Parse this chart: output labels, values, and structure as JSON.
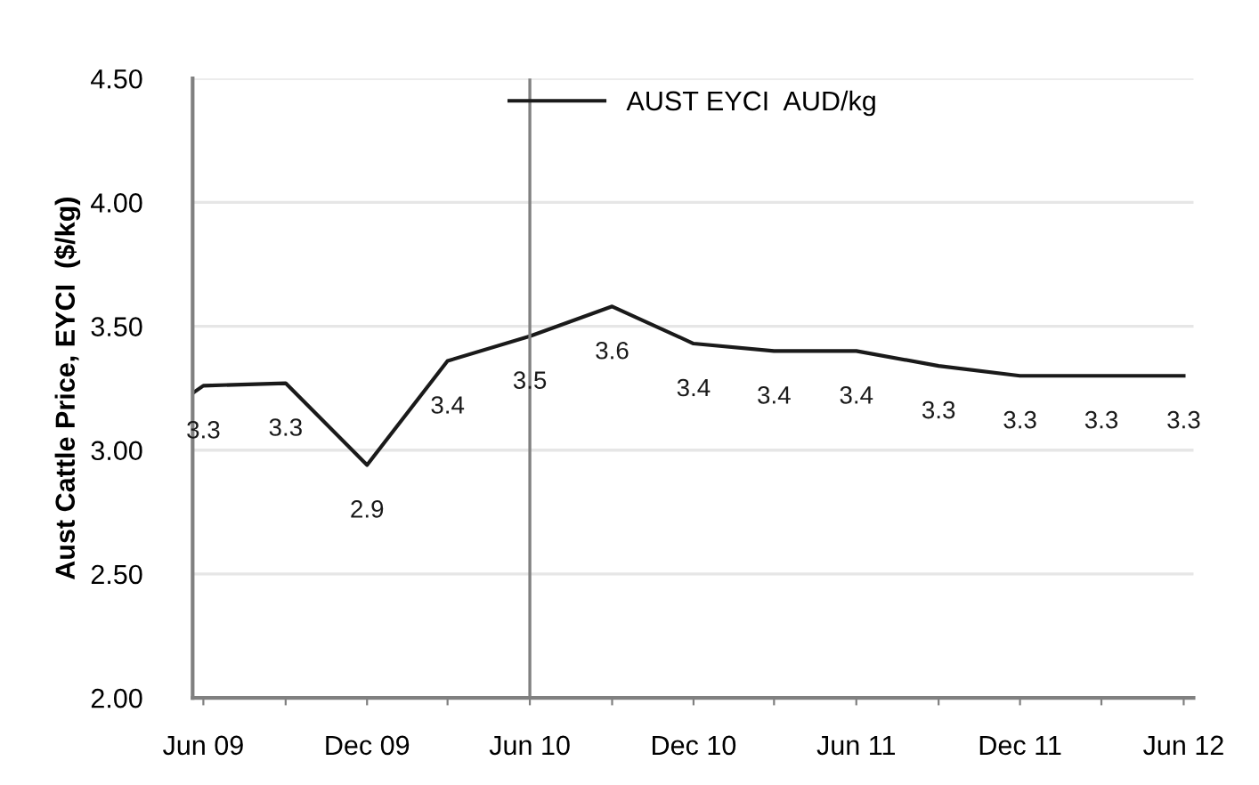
{
  "chart_data": {
    "type": "line",
    "ylabel": "Aust Cattle Price, EYCI  ($/kg)",
    "x": [
      "2009-05-20",
      "2009-06",
      "2009-09",
      "2009-12",
      "2010-03",
      "2010-06",
      "2010-09",
      "2010-12",
      "2011-03",
      "2011-06",
      "2011-09",
      "2011-12",
      "2012-03",
      "2012-06"
    ],
    "series": [
      {
        "name": "AUST EYCI  AUD/kg",
        "color": "#1a1a1a",
        "values": [
          3.23,
          3.26,
          3.27,
          2.94,
          3.36,
          3.46,
          3.58,
          3.43,
          3.4,
          3.4,
          3.34,
          3.3,
          3.3,
          3.3
        ],
        "value_labels": [
          null,
          "3.3",
          "3.3",
          "2.9",
          "3.4",
          "3.5",
          "3.6",
          "3.4",
          "3.4",
          "3.4",
          "3.3",
          "3.3",
          "3.3",
          "3.3"
        ]
      }
    ],
    "xlim": [
      "2009-05-20",
      "2012-06-12"
    ],
    "xticks": [
      {
        "value": "2009-06",
        "label": "Jun 09"
      },
      {
        "value": "2009-09",
        "label": null
      },
      {
        "value": "2009-12",
        "label": "Dec 09"
      },
      {
        "value": "2010-03",
        "label": null
      },
      {
        "value": "2010-06",
        "label": "Jun 10"
      },
      {
        "value": "2010-09",
        "label": null
      },
      {
        "value": "2010-12",
        "label": "Dec 10"
      },
      {
        "value": "2011-03",
        "label": null
      },
      {
        "value": "2011-06",
        "label": "Jun 11"
      },
      {
        "value": "2011-09",
        "label": null
      },
      {
        "value": "2011-12",
        "label": "Dec 11"
      },
      {
        "value": "2012-03",
        "label": null
      },
      {
        "value": "2012-06",
        "label": "Jun 12"
      }
    ],
    "ylim": [
      2.0,
      4.5
    ],
    "yticks": [
      {
        "value": 2.0,
        "label": "2.00"
      },
      {
        "value": 2.5,
        "label": "2.50"
      },
      {
        "value": 3.0,
        "label": "3.00"
      },
      {
        "value": 3.5,
        "label": "3.50"
      },
      {
        "value": 4.0,
        "label": "4.00"
      },
      {
        "value": 4.5,
        "label": "4.50"
      }
    ],
    "ref_lines": [
      {
        "axis": "x",
        "value": "2010-06",
        "color": "#808080"
      }
    ],
    "grid": "y",
    "legend": "top",
    "marker": "none",
    "line_style": "solid"
  }
}
